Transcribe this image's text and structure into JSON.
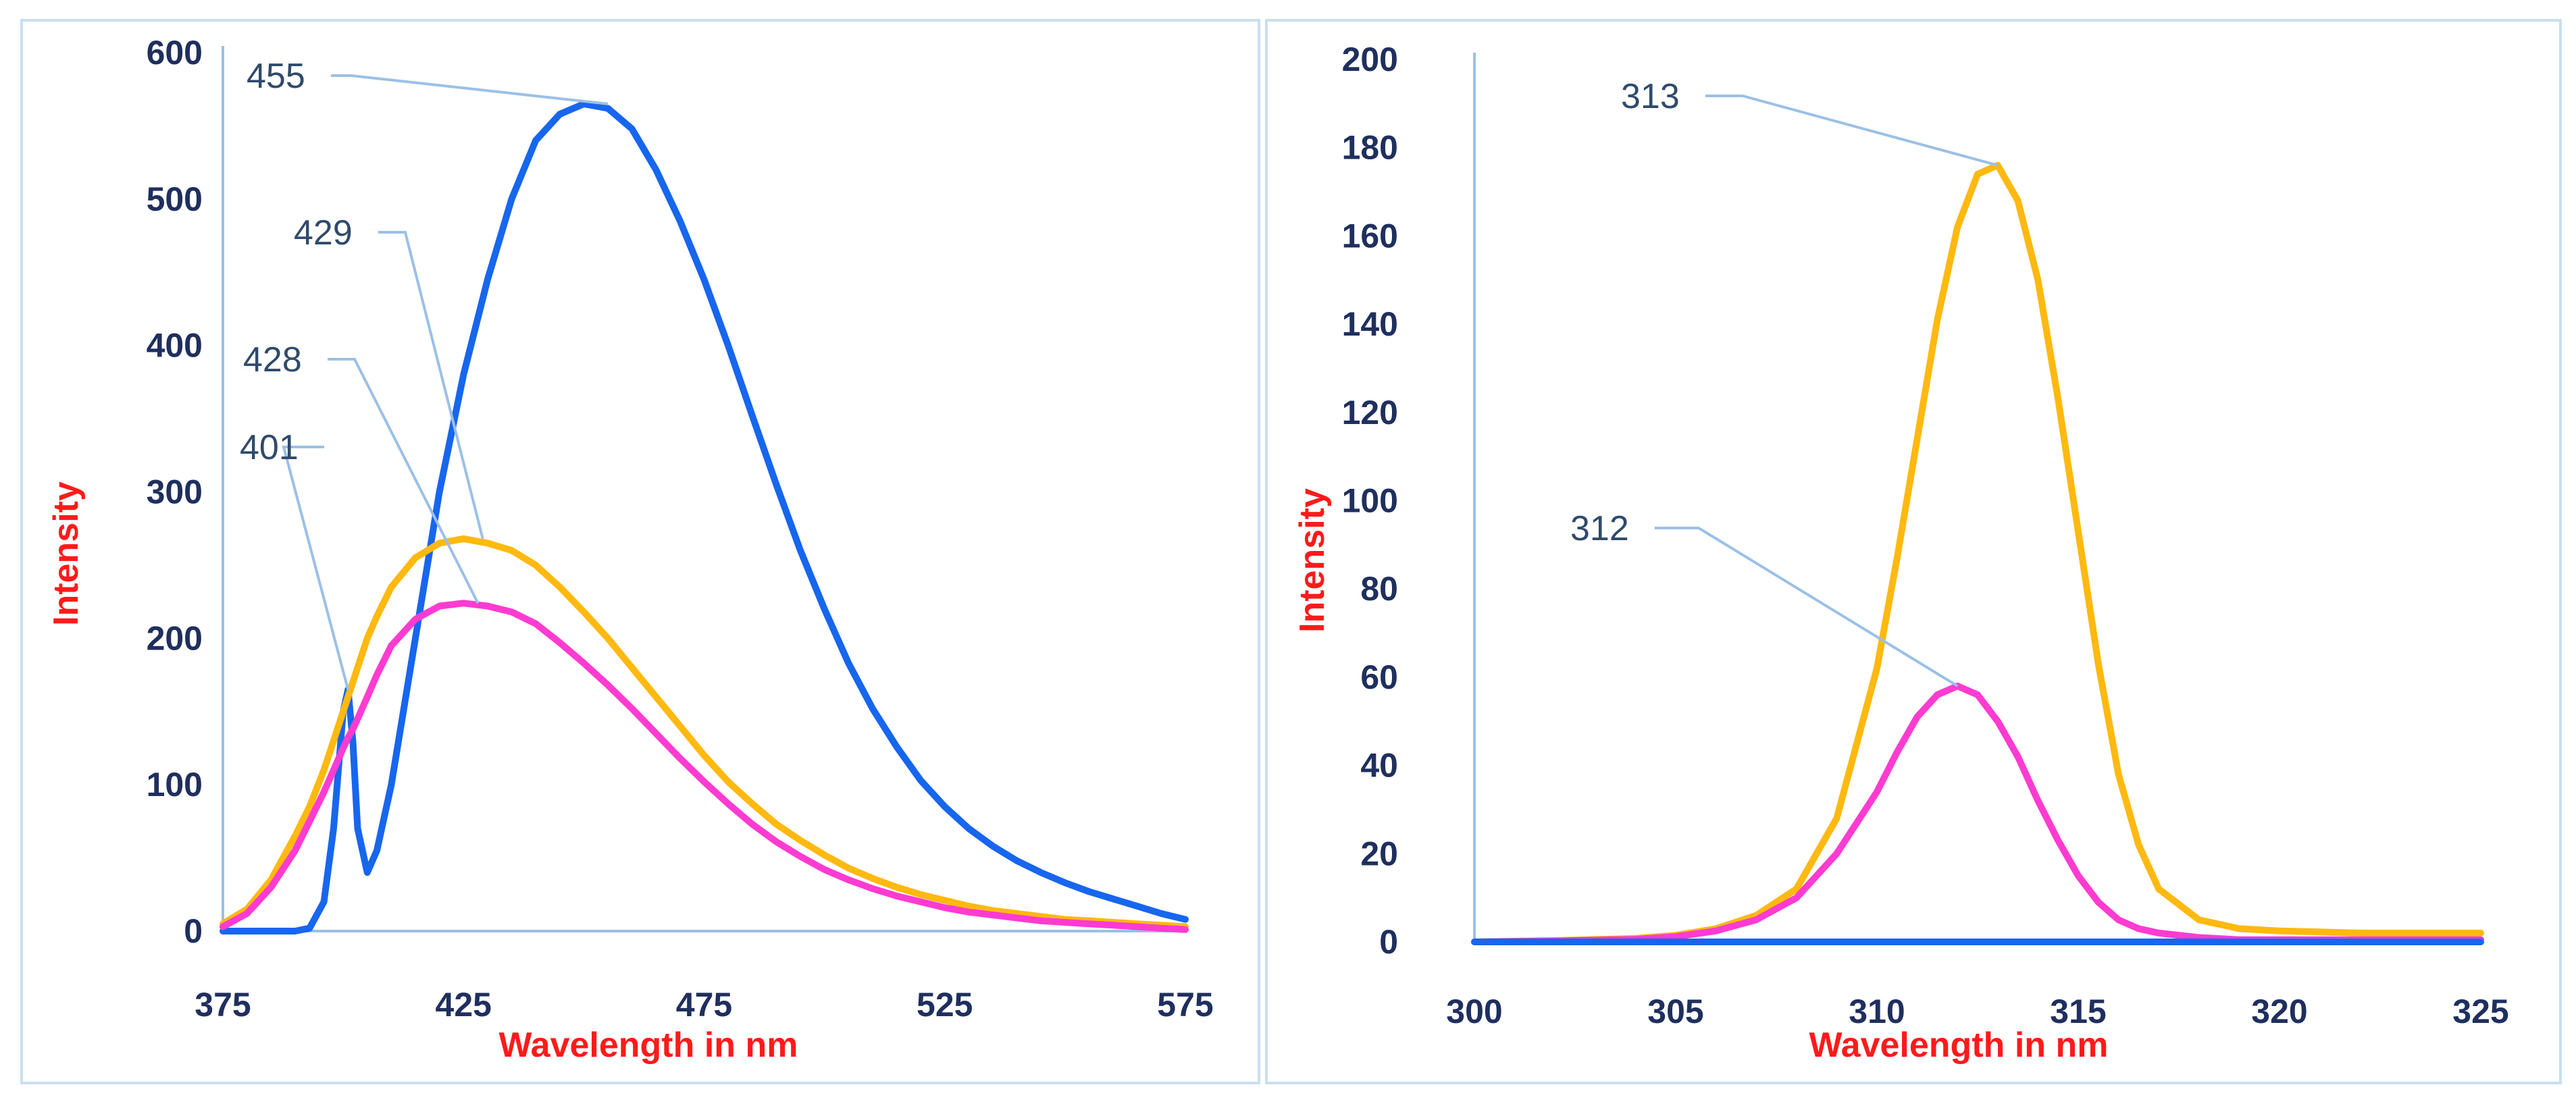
{
  "chart_data": [
    {
      "type": "line",
      "xlabel": "Wavelength in nm",
      "ylabel": "Intensity",
      "xlim": [
        375,
        575
      ],
      "ylim": [
        0,
        600
      ],
      "xticks": [
        375,
        425,
        475,
        525,
        575
      ],
      "yticks": [
        0,
        100,
        200,
        300,
        400,
        500,
        600
      ],
      "grid": false,
      "x": [
        375,
        380,
        385,
        390,
        393,
        396,
        398,
        400,
        401,
        402,
        403,
        405,
        407,
        410,
        415,
        420,
        425,
        430,
        435,
        440,
        445,
        450,
        455,
        460,
        465,
        470,
        475,
        480,
        485,
        490,
        495,
        500,
        505,
        510,
        515,
        520,
        525,
        530,
        535,
        540,
        545,
        550,
        555,
        560,
        565,
        570,
        575
      ],
      "series": [
        {
          "name": "blue",
          "color": "#1766ee",
          "values": [
            0,
            0,
            0,
            0,
            2,
            20,
            70,
            150,
            165,
            130,
            70,
            40,
            55,
            100,
            200,
            300,
            380,
            445,
            500,
            540,
            558,
            565,
            562,
            548,
            520,
            485,
            445,
            400,
            352,
            305,
            260,
            220,
            183,
            152,
            126,
            103,
            85,
            70,
            58,
            48,
            40,
            33,
            27,
            22,
            17,
            12,
            8
          ]
        },
        {
          "name": "yellow",
          "color": "#ffb90f",
          "values": [
            5,
            15,
            35,
            65,
            85,
            110,
            130,
            150,
            160,
            170,
            180,
            200,
            215,
            235,
            255,
            265,
            268,
            265,
            260,
            250,
            235,
            218,
            200,
            180,
            160,
            140,
            120,
            102,
            87,
            73,
            62,
            52,
            43,
            36,
            30,
            25,
            21,
            17,
            14,
            12,
            10,
            8,
            7,
            6,
            5,
            4,
            3
          ]
        },
        {
          "name": "magenta",
          "color": "#ff3bd1",
          "values": [
            3,
            12,
            30,
            55,
            75,
            95,
            110,
            125,
            132,
            138,
            145,
            160,
            175,
            195,
            213,
            222,
            224,
            222,
            218,
            210,
            197,
            183,
            168,
            152,
            135,
            118,
            102,
            87,
            73,
            61,
            51,
            42,
            35,
            29,
            24,
            20,
            16,
            13,
            11,
            9,
            7,
            6,
            5,
            4,
            3,
            2,
            1
          ]
        }
      ],
      "annotations": [
        {
          "text": "455",
          "x": 455,
          "y": 565
        },
        {
          "text": "429",
          "x": 429,
          "y": 268
        },
        {
          "text": "428",
          "x": 428,
          "y": 224
        },
        {
          "text": "401",
          "x": 401,
          "y": 165
        }
      ]
    },
    {
      "type": "line",
      "xlabel": "Wavelength in nm",
      "ylabel": "Intensity",
      "xlim": [
        300,
        325
      ],
      "ylim": [
        0,
        200
      ],
      "xticks": [
        300,
        305,
        310,
        315,
        320,
        325
      ],
      "yticks": [
        0,
        20,
        40,
        60,
        80,
        100,
        120,
        140,
        160,
        180,
        200
      ],
      "grid": false,
      "x": [
        300,
        302,
        304,
        305,
        306,
        307,
        308,
        309,
        310,
        310.5,
        311,
        311.5,
        312,
        312.5,
        313,
        313.5,
        314,
        314.5,
        315,
        315.5,
        316,
        316.5,
        317,
        318,
        319,
        320,
        322,
        325
      ],
      "series": [
        {
          "name": "yellow",
          "color": "#ffb90f",
          "values": [
            0,
            0.3,
            0.8,
            1.5,
            3,
            6,
            12,
            28,
            62,
            87,
            114,
            141,
            162,
            174,
            176,
            168,
            150,
            123,
            93,
            63,
            38,
            22,
            12,
            5,
            3,
            2.5,
            2,
            2
          ]
        },
        {
          "name": "magenta",
          "color": "#ff3bd1",
          "values": [
            0,
            0.2,
            0.6,
            1.2,
            2.5,
            5,
            10,
            20,
            34,
            43,
            51,
            56,
            58,
            56,
            50,
            42,
            32,
            23,
            15,
            9,
            5,
            3,
            2,
            1,
            0.5,
            0.5,
            0.5,
            0.5
          ]
        },
        {
          "name": "blue",
          "color": "#1766ee",
          "values": [
            0,
            0,
            0,
            0,
            0,
            0,
            0,
            0,
            0,
            0,
            0,
            0,
            0,
            0,
            0,
            0,
            0,
            0,
            0,
            0,
            0,
            0,
            0,
            0,
            0,
            0,
            0,
            0
          ]
        }
      ],
      "annotations": [
        {
          "text": "313",
          "x": 313,
          "y": 176
        },
        {
          "text": "312",
          "x": 312,
          "y": 58
        }
      ]
    }
  ]
}
